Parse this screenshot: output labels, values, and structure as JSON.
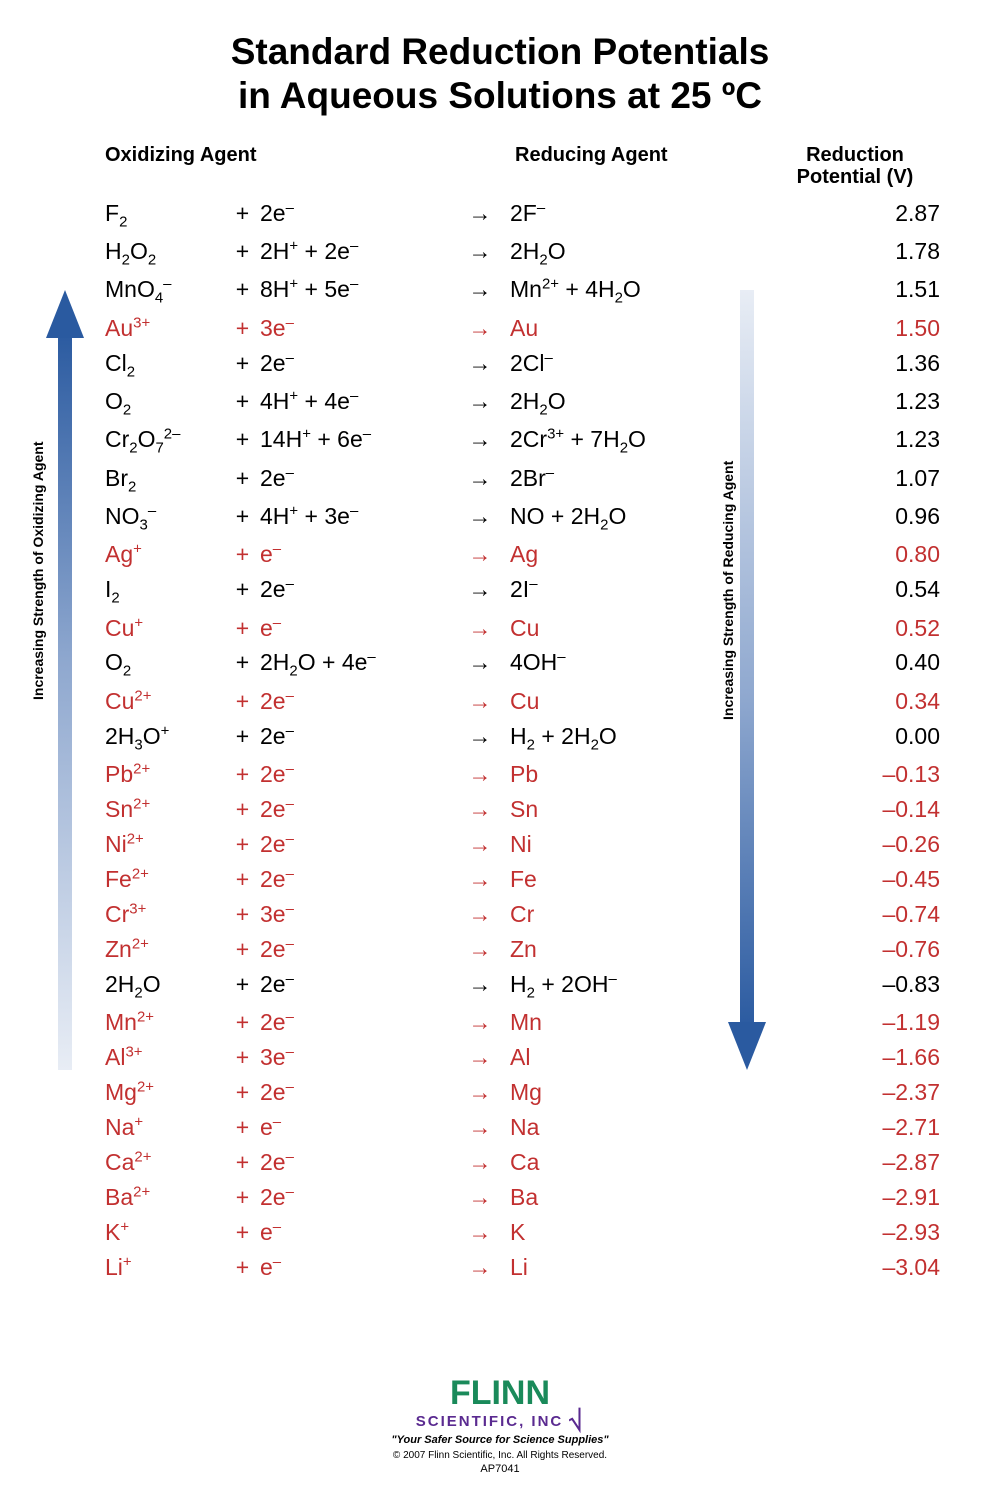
{
  "title_line1": "Standard Reduction Potentials",
  "title_line2": "in Aqueous Solutions at 25 ºC",
  "headers": {
    "oxidizing": "Oxidizing Agent",
    "reducing": "Reducing Agent",
    "potential_line1": "Reduction",
    "potential_line2": "Potential (V)"
  },
  "left_arrow_label": "Increasing Strength of Oxidizing Agent",
  "right_arrow_label": "Increasing Strength of Reducing Agent",
  "colors": {
    "highlight": "#c23030",
    "arrow_dark": "#2a5aa0",
    "arrow_light": "#e8edf5",
    "logo_green": "#1a8a5a",
    "logo_purple": "#5a2a90",
    "text": "#000000",
    "background": "#ffffff"
  },
  "typography": {
    "title_fontsize": 37,
    "header_fontsize": 20,
    "row_fontsize": 23,
    "label_fontsize": 14
  },
  "rows": [
    {
      "ox": "F|2|",
      "el": "2e|^-|",
      "red": "2F|^-|",
      "pot": "2.87",
      "hl": false
    },
    {
      "ox": "H|2|O|2|",
      "el": "2H|^+| + 2e|^-|",
      "red": "2H|2|O",
      "pot": "1.78",
      "hl": false
    },
    {
      "ox": "MnO|4||^-|",
      "el": "8H|^+| + 5e|^-|",
      "red": "Mn|^2+| + 4H|2|O",
      "pot": "1.51",
      "hl": false
    },
    {
      "ox": "Au|^3+|",
      "el": "3e|^-|",
      "red": "Au",
      "pot": "1.50",
      "hl": true
    },
    {
      "ox": "Cl|2|",
      "el": "2e|^-|",
      "red": "2Cl|^-|",
      "pot": "1.36",
      "hl": false
    },
    {
      "ox": "O|2|",
      "el": "4H|^+| + 4e|^-|",
      "red": "2H|2|O",
      "pot": "1.23",
      "hl": false
    },
    {
      "ox": "Cr|2|O|7||^2-|",
      "el": "14H|^+| + 6e|^-|",
      "red": "2Cr|^3+| + 7H|2|O",
      "pot": "1.23",
      "hl": false
    },
    {
      "ox": "Br|2|",
      "el": "2e|^-|",
      "red": "2Br|^-|",
      "pot": "1.07",
      "hl": false
    },
    {
      "ox": "NO|3||^-|",
      "el": "4H|^+| + 3e|^-|",
      "red": "NO + 2H|2|O",
      "pot": "0.96",
      "hl": false
    },
    {
      "ox": "Ag|^+|",
      "el": "e|^-|",
      "red": "Ag",
      "pot": "0.80",
      "hl": true
    },
    {
      "ox": "I|2|",
      "el": "2e|^-|",
      "red": "2I|^-|",
      "pot": "0.54",
      "hl": false
    },
    {
      "ox": "Cu|^+|",
      "el": "e|^-|",
      "red": "Cu",
      "pot": "0.52",
      "hl": true
    },
    {
      "ox": "O|2|",
      "el": "2H|2|O + 4e|^-|",
      "red": "4OH|^-|",
      "pot": "0.40",
      "hl": false
    },
    {
      "ox": "Cu|^2+|",
      "el": "2e|^-|",
      "red": "Cu",
      "pot": "0.34",
      "hl": true
    },
    {
      "ox": "2H|3|O|^+|",
      "el": "2e|^-|",
      "red": "H|2| + 2H|2|O",
      "pot": "0.00",
      "hl": false
    },
    {
      "ox": "Pb|^2+|",
      "el": "2e|^-|",
      "red": "Pb",
      "pot": "–0.13",
      "hl": true
    },
    {
      "ox": "Sn|^2+|",
      "el": "2e|^-|",
      "red": "Sn",
      "pot": "–0.14",
      "hl": true
    },
    {
      "ox": "Ni|^2+|",
      "el": "2e|^-|",
      "red": "Ni",
      "pot": "–0.26",
      "hl": true
    },
    {
      "ox": "Fe|^2+|",
      "el": "2e|^-|",
      "red": "Fe",
      "pot": "–0.45",
      "hl": true
    },
    {
      "ox": "Cr|^3+|",
      "el": "3e|^-|",
      "red": "Cr",
      "pot": "–0.74",
      "hl": true
    },
    {
      "ox": "Zn|^2+|",
      "el": "2e|^-|",
      "red": "Zn",
      "pot": "–0.76",
      "hl": true
    },
    {
      "ox": "2H|2|O",
      "el": "2e|^-|",
      "red": "H|2| + 2OH|^-|",
      "pot": "–0.83",
      "hl": false
    },
    {
      "ox": "Mn|^2+|",
      "el": "2e|^-|",
      "red": "Mn",
      "pot": "–1.19",
      "hl": true
    },
    {
      "ox": "Al|^3+|",
      "el": "3e|^-|",
      "red": "Al",
      "pot": "–1.66",
      "hl": true
    },
    {
      "ox": "Mg|^2+|",
      "el": "2e|^-|",
      "red": "Mg",
      "pot": "–2.37",
      "hl": true
    },
    {
      "ox": "Na|^+|",
      "el": "e|^-|",
      "red": "Na",
      "pot": "–2.71",
      "hl": true
    },
    {
      "ox": "Ca|^2+|",
      "el": "2e|^-|",
      "red": "Ca",
      "pot": "–2.87",
      "hl": true
    },
    {
      "ox": "Ba|^2+|",
      "el": "2e|^-|",
      "red": "Ba",
      "pot": "–2.91",
      "hl": true
    },
    {
      "ox": "K|^+|",
      "el": "e|^-|",
      "red": "K",
      "pot": "–2.93",
      "hl": true
    },
    {
      "ox": "Li|^+|",
      "el": "e|^-|",
      "red": "Li",
      "pot": "–3.04",
      "hl": true
    }
  ],
  "plus_symbol": "+",
  "arrow_symbol": "→",
  "footer": {
    "logo_top": "FLINN",
    "logo_bottom": "SCIENTIFIC, INC",
    "tagline": "\"Your Safer Source for Science Supplies\"",
    "copyright": "© 2007 Flinn Scientific, Inc. All Rights Reserved.",
    "code": "AP7041"
  }
}
